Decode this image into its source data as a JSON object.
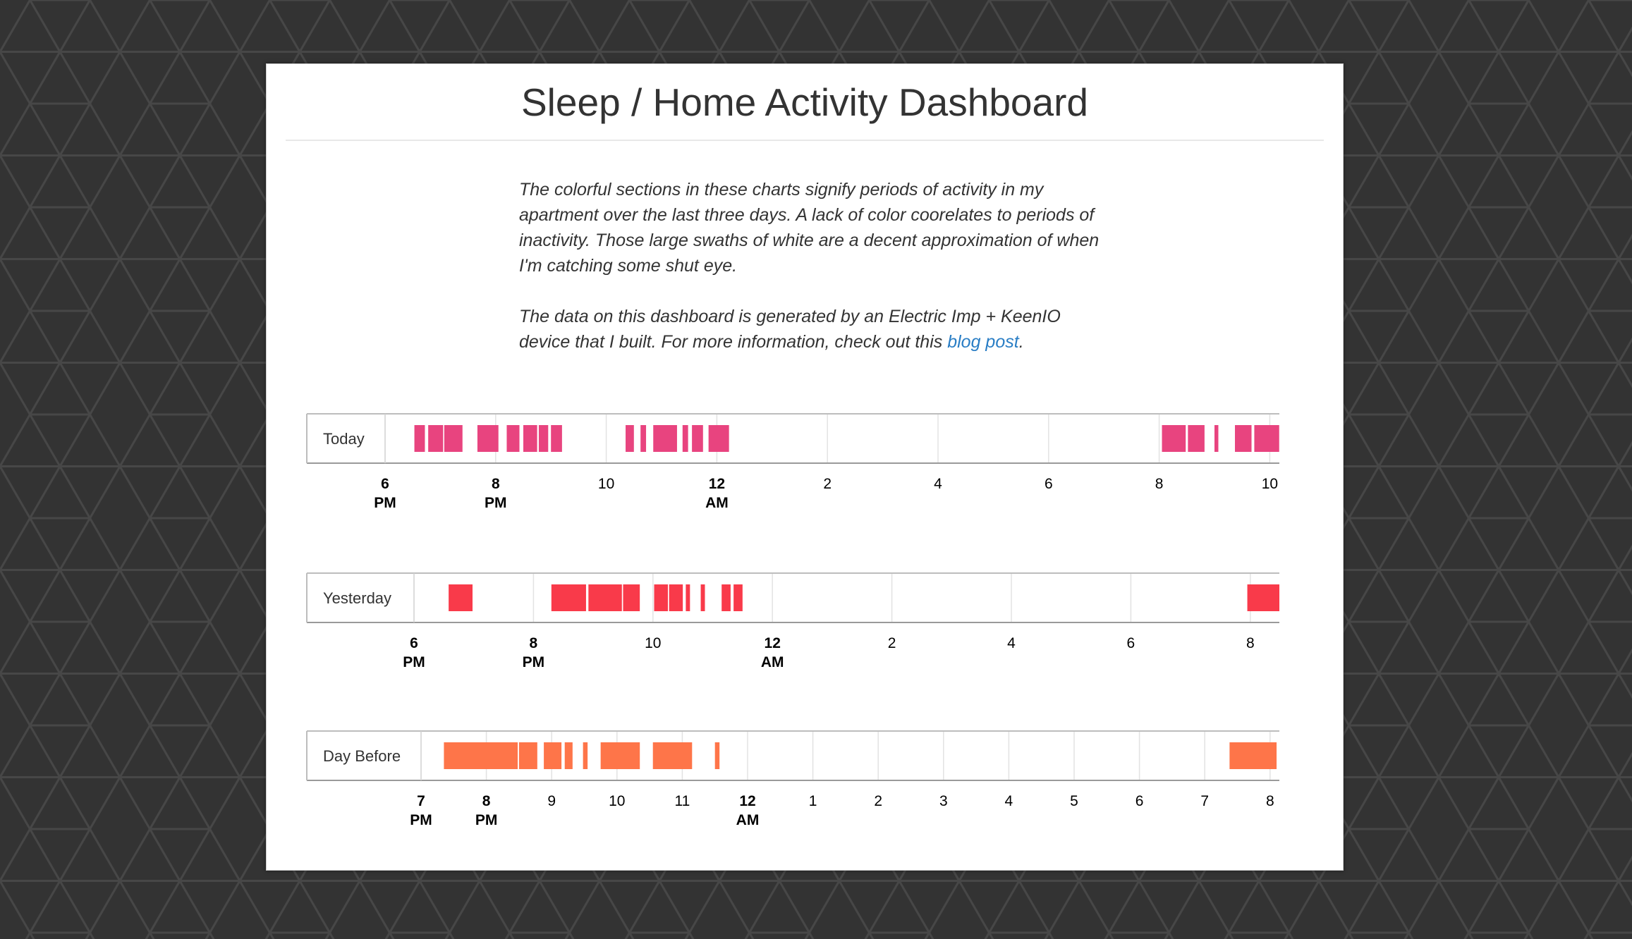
{
  "page": {
    "title": "Sleep / Home Activity Dashboard",
    "description": {
      "paragraph1": "The colorful sections in these charts signify periods of activity in my apartment over the last three days. A lack of color coorelates to periods of inactivity. Those large swaths of white are a decent approximation of when I'm catching some shut eye.",
      "paragraph2_prefix": "The data on this dashboard is generated by an Electric Imp + KeenIO device that I built. For more information, check out this ",
      "link_text": "blog post",
      "paragraph2_suffix": "."
    },
    "colors": {
      "background": "#333333",
      "today": "#e8447f",
      "yesterday": "#f93a4a",
      "day_before": "#fe7549",
      "link": "#2a7ec5"
    }
  },
  "chart_data": [
    {
      "type": "timeline",
      "label": "Today",
      "color": "#e8447f",
      "x_unit": "hours since 6 PM",
      "x_range": [
        0,
        17
      ],
      "ticks": [
        {
          "h": 0,
          "label": "6",
          "sub": "PM",
          "bold": true
        },
        {
          "h": 2,
          "label": "8",
          "sub": "PM",
          "bold": true
        },
        {
          "h": 4,
          "label": "10",
          "sub": "",
          "bold": false
        },
        {
          "h": 6,
          "label": "12",
          "sub": "AM",
          "bold": true
        },
        {
          "h": 8,
          "label": "2",
          "sub": "",
          "bold": false
        },
        {
          "h": 10,
          "label": "4",
          "sub": "",
          "bold": false
        },
        {
          "h": 12,
          "label": "6",
          "sub": "",
          "bold": false
        },
        {
          "h": 14,
          "label": "8",
          "sub": "",
          "bold": false
        },
        {
          "h": 16,
          "label": "10",
          "sub": "",
          "bold": false
        }
      ],
      "segments": [
        [
          0.53,
          0.72
        ],
        [
          0.78,
          1.05
        ],
        [
          1.07,
          1.4
        ],
        [
          1.67,
          2.05
        ],
        [
          2.2,
          2.43
        ],
        [
          2.5,
          2.75
        ],
        [
          2.78,
          2.95
        ],
        [
          3.0,
          3.2
        ],
        [
          4.35,
          4.5
        ],
        [
          4.62,
          4.72
        ],
        [
          4.85,
          5.28
        ],
        [
          5.38,
          5.48
        ],
        [
          5.55,
          5.75
        ],
        [
          5.85,
          6.22
        ],
        [
          14.05,
          14.48
        ],
        [
          14.52,
          14.82
        ],
        [
          15.0,
          15.07
        ],
        [
          15.37,
          15.67
        ],
        [
          15.72,
          16.17
        ]
      ]
    },
    {
      "type": "timeline",
      "label": "Yesterday",
      "color": "#f93a4a",
      "x_unit": "hours since 6 PM",
      "x_range": [
        0,
        14.5
      ],
      "ticks": [
        {
          "h": 0,
          "label": "6",
          "sub": "PM",
          "bold": true
        },
        {
          "h": 2,
          "label": "8",
          "sub": "PM",
          "bold": true
        },
        {
          "h": 4,
          "label": "10",
          "sub": "",
          "bold": false
        },
        {
          "h": 6,
          "label": "12",
          "sub": "AM",
          "bold": true
        },
        {
          "h": 8,
          "label": "2",
          "sub": "",
          "bold": false
        },
        {
          "h": 10,
          "label": "4",
          "sub": "",
          "bold": false
        },
        {
          "h": 12,
          "label": "6",
          "sub": "",
          "bold": false
        },
        {
          "h": 14,
          "label": "8",
          "sub": "",
          "bold": false
        }
      ],
      "segments": [
        [
          0.58,
          0.98
        ],
        [
          2.3,
          2.88
        ],
        [
          2.92,
          3.48
        ],
        [
          3.5,
          3.78
        ],
        [
          4.02,
          4.25
        ],
        [
          4.27,
          4.5
        ],
        [
          4.55,
          4.62
        ],
        [
          4.8,
          4.87
        ],
        [
          5.15,
          5.3
        ],
        [
          5.35,
          5.5
        ],
        [
          13.95,
          14.5
        ]
      ]
    },
    {
      "type": "timeline",
      "label": "Day Before",
      "color": "#fe7549",
      "x_unit": "hours since 7 PM",
      "x_range": [
        0,
        13.2
      ],
      "ticks": [
        {
          "h": 0,
          "label": "7",
          "sub": "PM",
          "bold": true
        },
        {
          "h": 1,
          "label": "8",
          "sub": "PM",
          "bold": true
        },
        {
          "h": 2,
          "label": "9",
          "sub": "",
          "bold": false
        },
        {
          "h": 3,
          "label": "10",
          "sub": "",
          "bold": false
        },
        {
          "h": 4,
          "label": "11",
          "sub": "",
          "bold": false
        },
        {
          "h": 5,
          "label": "12",
          "sub": "AM",
          "bold": true
        },
        {
          "h": 6,
          "label": "1",
          "sub": "",
          "bold": false
        },
        {
          "h": 7,
          "label": "2",
          "sub": "",
          "bold": false
        },
        {
          "h": 8,
          "label": "3",
          "sub": "",
          "bold": false
        },
        {
          "h": 9,
          "label": "4",
          "sub": "",
          "bold": false
        },
        {
          "h": 10,
          "label": "5",
          "sub": "",
          "bold": false
        },
        {
          "h": 11,
          "label": "6",
          "sub": "",
          "bold": false
        },
        {
          "h": 12,
          "label": "7",
          "sub": "",
          "bold": false
        },
        {
          "h": 13,
          "label": "8",
          "sub": "",
          "bold": false
        }
      ],
      "segments": [
        [
          0.35,
          1.48
        ],
        [
          1.5,
          1.78
        ],
        [
          1.88,
          2.15
        ],
        [
          2.2,
          2.32
        ],
        [
          2.48,
          2.55
        ],
        [
          2.75,
          3.35
        ],
        [
          3.55,
          4.15
        ],
        [
          4.5,
          4.57
        ],
        [
          12.38,
          13.1
        ]
      ]
    }
  ]
}
